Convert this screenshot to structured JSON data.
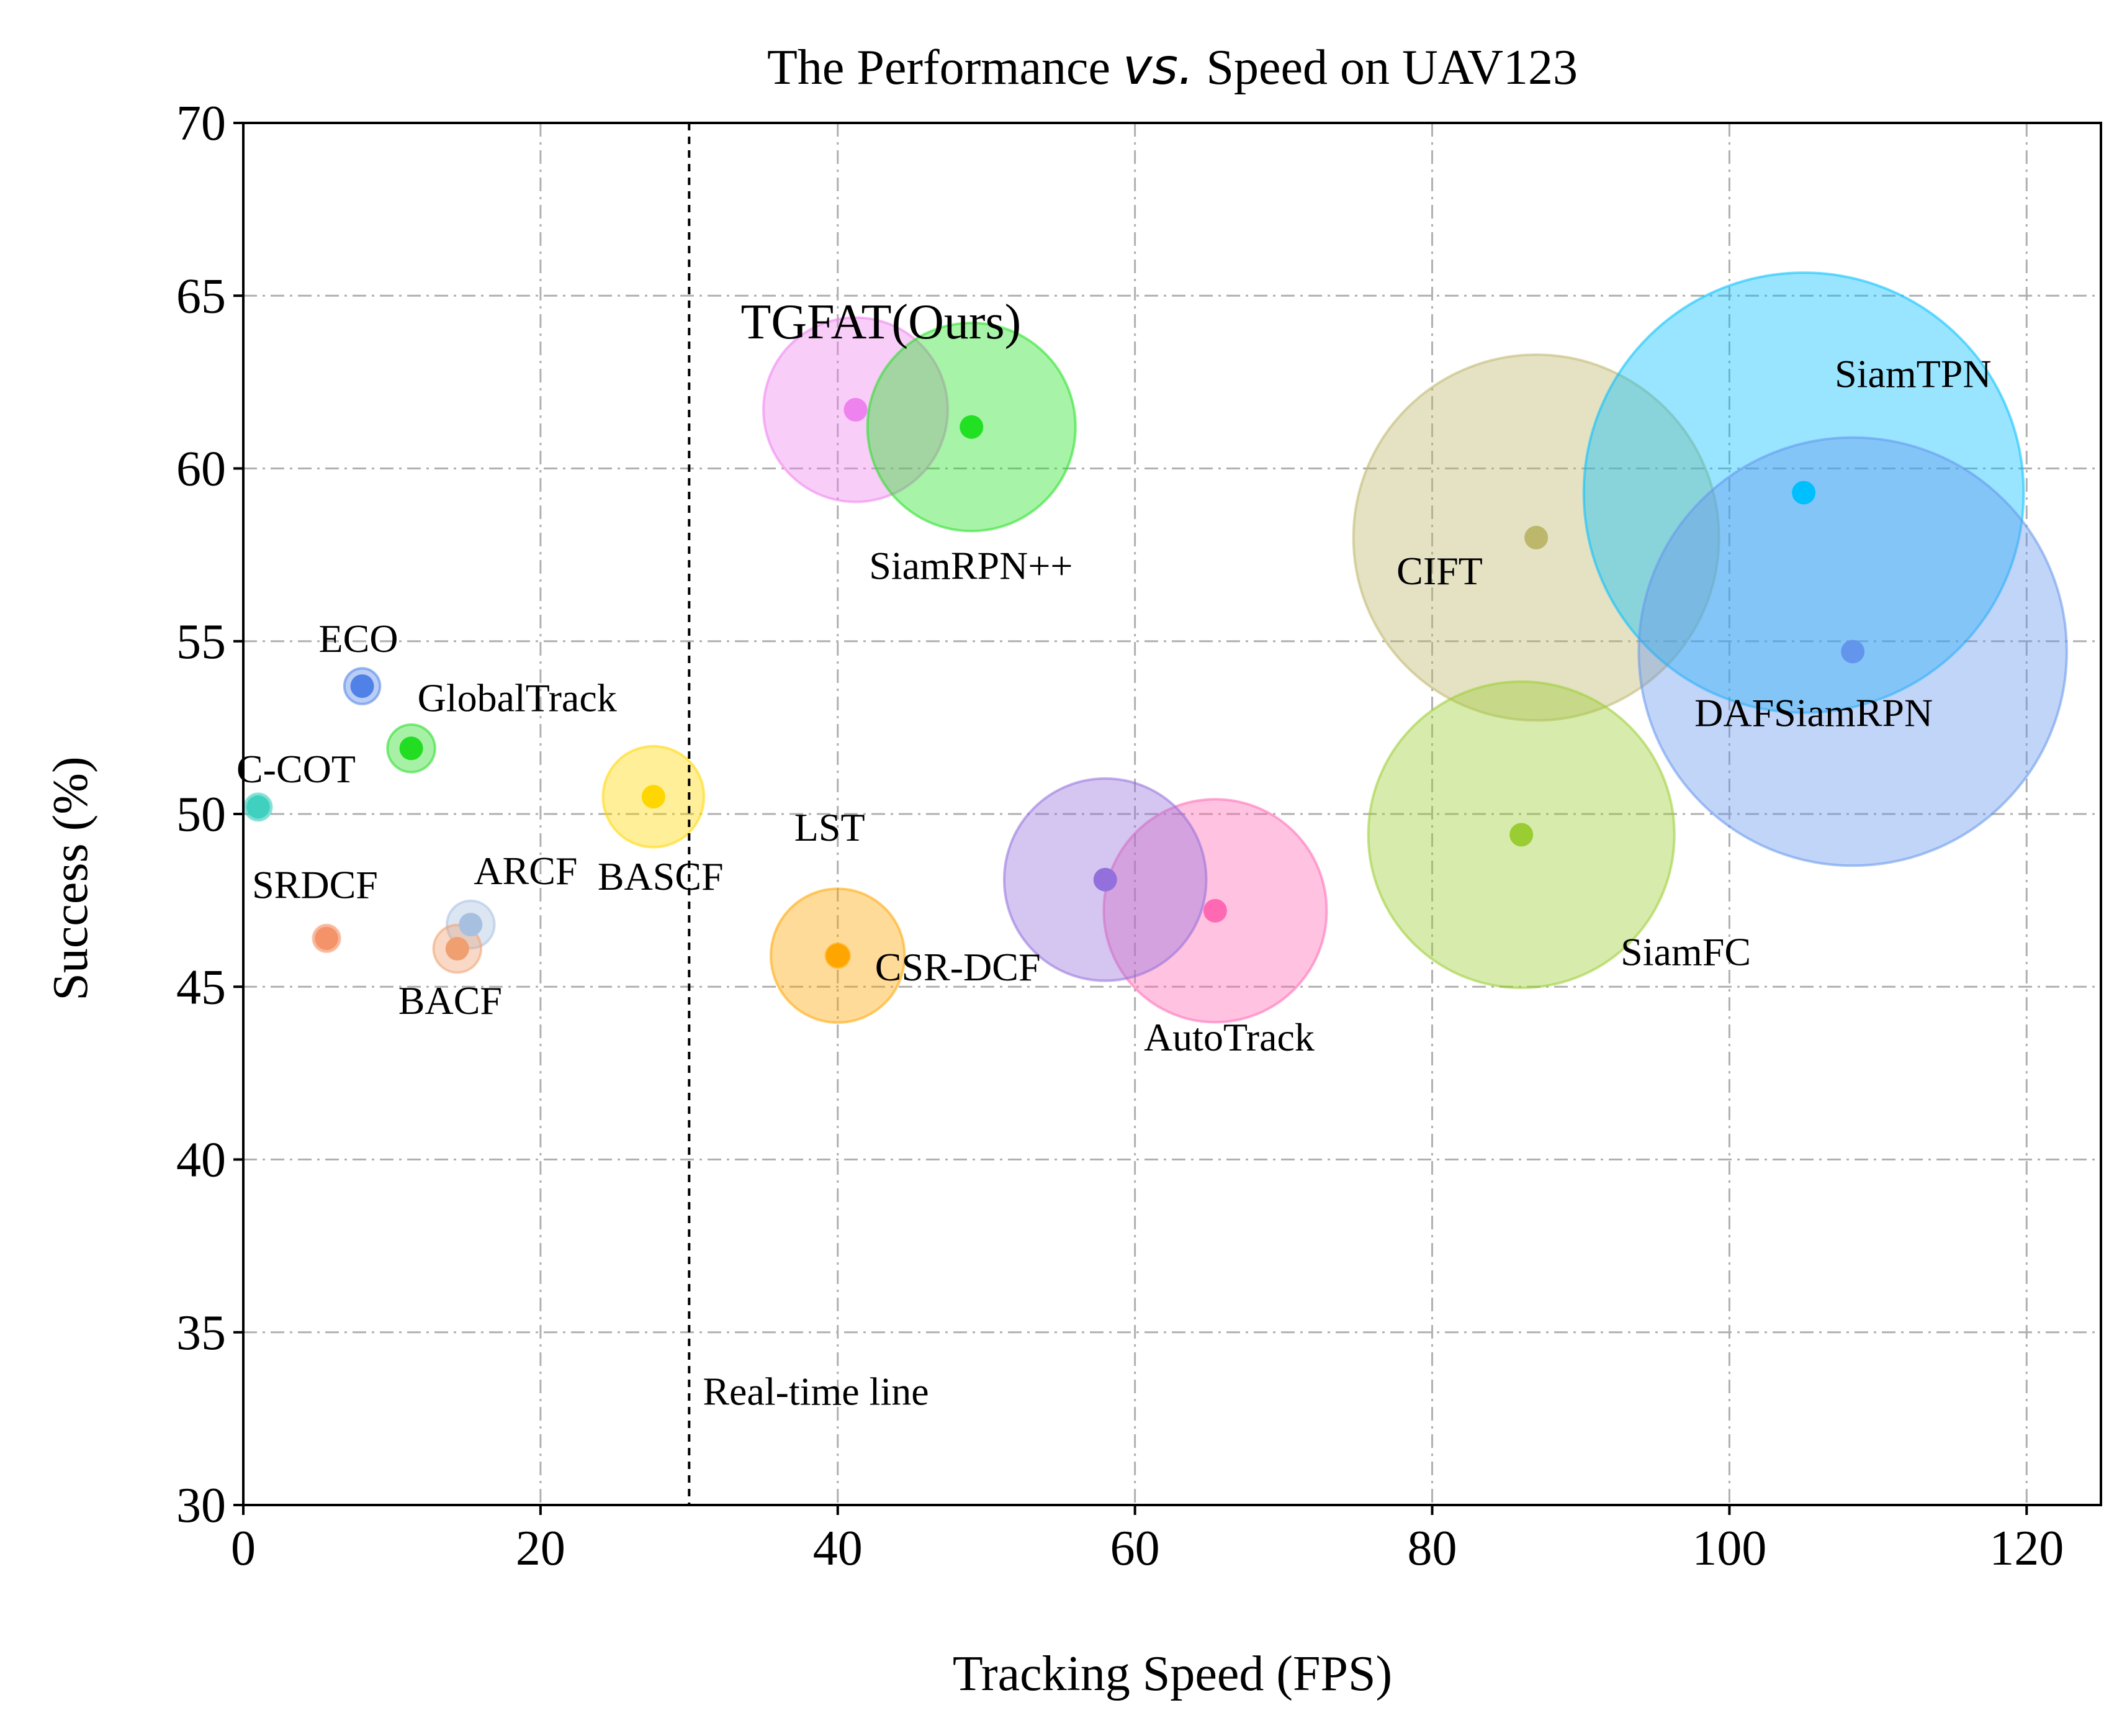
{
  "chart_data": {
    "type": "scatter",
    "title_parts": [
      "The Performance ",
      "vs.",
      " Speed on UAV123"
    ],
    "xlabel": "Tracking Speed (FPS)",
    "ylabel": "Success (%)",
    "xlim": [
      0,
      125
    ],
    "ylim": [
      30,
      70
    ],
    "xticks": [
      0,
      20,
      40,
      60,
      80,
      100,
      120
    ],
    "yticks": [
      30,
      35,
      40,
      45,
      50,
      55,
      60,
      65,
      70
    ],
    "grid": true,
    "realtime_line": {
      "x": 30,
      "label": "Real-time line"
    },
    "points": [
      {
        "name": "ECO",
        "fps": 8,
        "success": 53.7,
        "size": 1.2,
        "color": "#4f81e6"
      },
      {
        "name": "GlobalTrack",
        "fps": 11.3,
        "success": 51.9,
        "size": 1.6,
        "color": "#22dd22"
      },
      {
        "name": "C-COT",
        "fps": 1,
        "success": 50.2,
        "size": 0.9,
        "color": "#40d0c0"
      },
      {
        "name": "SRDCF",
        "fps": 5.6,
        "success": 46.4,
        "size": 0.9,
        "color": "#f4936a"
      },
      {
        "name": "ARCF",
        "fps": 15.3,
        "success": 46.8,
        "size": 1.6,
        "color": "#a8c0e0"
      },
      {
        "name": "BACF",
        "fps": 14.4,
        "success": 46.1,
        "size": 1.6,
        "color": "#f0a070"
      },
      {
        "name": "BASCF",
        "fps": 27.6,
        "success": 50.5,
        "size": 3.4,
        "color": "#ffd700"
      },
      {
        "name": "LST",
        "fps": 40,
        "success": 45.9,
        "size": 4.5,
        "color": "#ffa500"
      },
      {
        "name": "CSR-DCF",
        "fps": 40,
        "success": 45.9,
        "size": 0.8,
        "color": "#ffa500"
      },
      {
        "name": "TGFAT(Ours)",
        "fps": 41.2,
        "success": 61.7,
        "size": 6.2,
        "color": "#ee82ee"
      },
      {
        "name": "SiamRPN++",
        "fps": 49,
        "success": 61.2,
        "size": 7.0,
        "color": "#22e022"
      },
      {
        "name": "AutoTrack",
        "fps": 65.4,
        "success": 47.2,
        "size": 7.5,
        "color": "#ff69b4"
      },
      {
        "name": "",
        "fps": 58,
        "success": 48.1,
        "size": 6.8,
        "color": "#9370db"
      },
      {
        "name": "CIFT",
        "fps": 87,
        "success": 58,
        "size": 12.3,
        "color": "#bdb76b"
      },
      {
        "name": "SiamFC",
        "fps": 86,
        "success": 49.4,
        "size": 10.3,
        "color": "#9acd32"
      },
      {
        "name": "SiamTPN",
        "fps": 105,
        "success": 59.3,
        "size": 14.8,
        "color": "#00bfff"
      },
      {
        "name": "DAFSiamRPN",
        "fps": 108.3,
        "success": 54.7,
        "size": 14.4,
        "color": "#6495ed"
      }
    ]
  }
}
